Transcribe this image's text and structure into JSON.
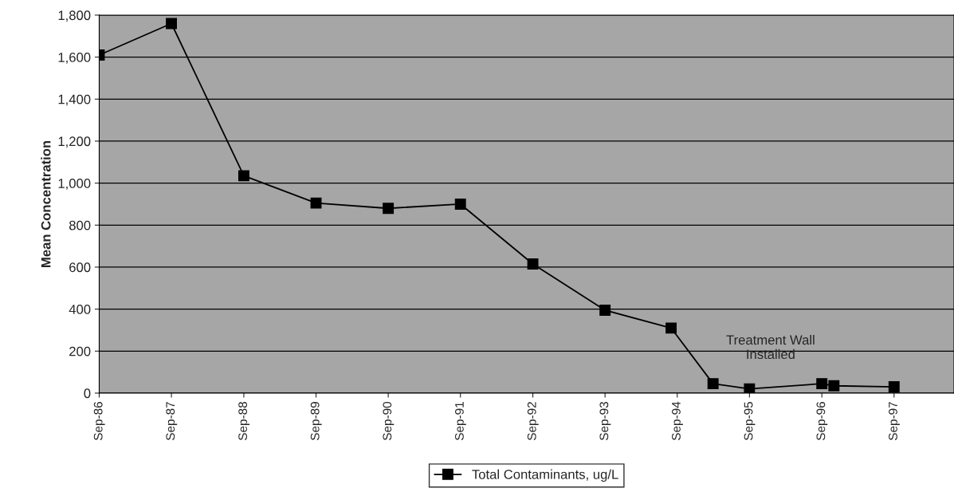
{
  "chart_data": {
    "type": "line",
    "ylabel": "Mean Concentration",
    "x": [
      "1986-09",
      "1987-09",
      "1988-09",
      "1989-09",
      "1990-09",
      "1991-09",
      "1992-09",
      "1993-09",
      "1994-08",
      "1995-03",
      "1995-09",
      "1996-09",
      "1996-11",
      "1997-09"
    ],
    "series": [
      {
        "name": "Total Contaminants, ug/L",
        "color": "#000000",
        "values": [
          1610,
          1760,
          1035,
          905,
          880,
          900,
          615,
          395,
          310,
          45,
          20,
          45,
          35,
          30
        ]
      }
    ],
    "xlim": [
      "1986-09",
      "1998-07"
    ],
    "xticks": [
      {
        "value": "1986-09",
        "label": "Sep-86"
      },
      {
        "value": "1987-09",
        "label": "Sep-87"
      },
      {
        "value": "1988-09",
        "label": "Sep-88"
      },
      {
        "value": "1989-09",
        "label": "Sep-89"
      },
      {
        "value": "1990-09",
        "label": "Sep-90"
      },
      {
        "value": "1991-09",
        "label": "Sep-91"
      },
      {
        "value": "1992-09",
        "label": "Sep-92"
      },
      {
        "value": "1993-09",
        "label": "Sep-93"
      },
      {
        "value": "1994-09",
        "label": "Sep-94"
      },
      {
        "value": "1995-09",
        "label": "Sep-95"
      },
      {
        "value": "1996-09",
        "label": "Sep-96"
      },
      {
        "value": "1997-09",
        "label": "Sep-97"
      }
    ],
    "ylim": [
      0,
      1800
    ],
    "yticks": [
      {
        "value": 0,
        "label": "0"
      },
      {
        "value": 200,
        "label": "200"
      },
      {
        "value": 400,
        "label": "400"
      },
      {
        "value": 600,
        "label": "600"
      },
      {
        "value": 800,
        "label": "800"
      },
      {
        "value": 1000,
        "label": "1,000"
      },
      {
        "value": 1200,
        "label": "1,200"
      },
      {
        "value": 1400,
        "label": "1,400"
      },
      {
        "value": 1600,
        "label": "1,600"
      },
      {
        "value": 1800,
        "label": "1,800"
      }
    ],
    "annotations": [
      {
        "text": "Treatment Wall\nInstalled",
        "x": "1995-03",
        "y": 45
      }
    ],
    "grid": "y",
    "legend": "bottom",
    "marker": "square",
    "line_style": "solid"
  }
}
